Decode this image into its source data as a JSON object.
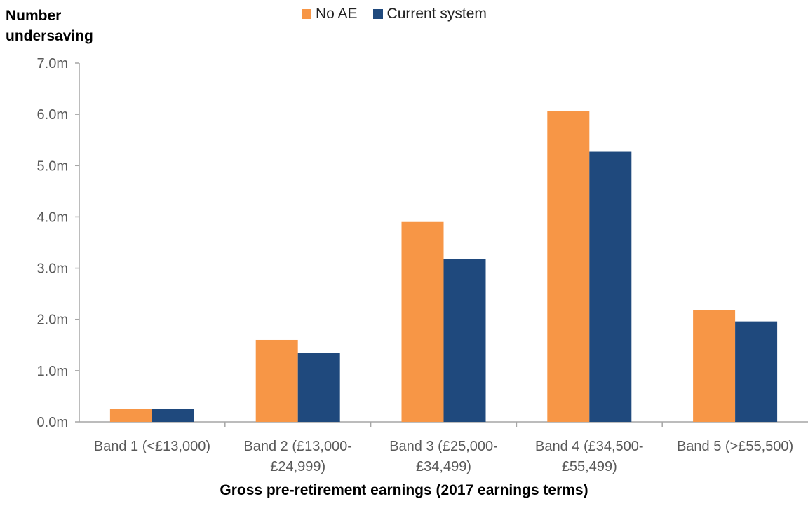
{
  "chart_data": {
    "type": "bar",
    "ylabel_lines": [
      "Number",
      "undersaving"
    ],
    "xlabel": "Gross pre-retirement earnings (2017 earnings terms)",
    "categories": [
      [
        "Band 1 (<£13,000)"
      ],
      [
        "Band 2 (£13,000-",
        "£24,999)"
      ],
      [
        "Band 3 (£25,000-",
        "£34,499)"
      ],
      [
        "Band 4 (£34,500-",
        "£55,499)"
      ],
      [
        "Band 5 (>£55,500)"
      ]
    ],
    "series": [
      {
        "name": "No AE",
        "color": "#f79646",
        "values": [
          0.25,
          1.6,
          3.9,
          6.07,
          2.18
        ]
      },
      {
        "name": "Current system",
        "color": "#1f497d",
        "values": [
          0.25,
          1.35,
          3.18,
          5.27,
          1.96
        ]
      }
    ],
    "yticks": [
      "0.0m",
      "1.0m",
      "2.0m",
      "3.0m",
      "4.0m",
      "5.0m",
      "6.0m",
      "7.0m"
    ],
    "ylim": [
      0,
      7
    ],
    "grid": false,
    "legend_position": "top-center"
  }
}
